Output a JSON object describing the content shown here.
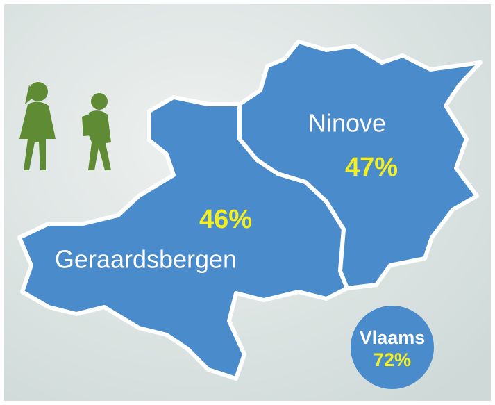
{
  "regions": [
    {
      "name": "Ninove",
      "value": "47%"
    },
    {
      "name": "Geraardsbergen",
      "value": "46%"
    }
  ],
  "average": {
    "name": "Vlaams",
    "value": "72%"
  }
}
